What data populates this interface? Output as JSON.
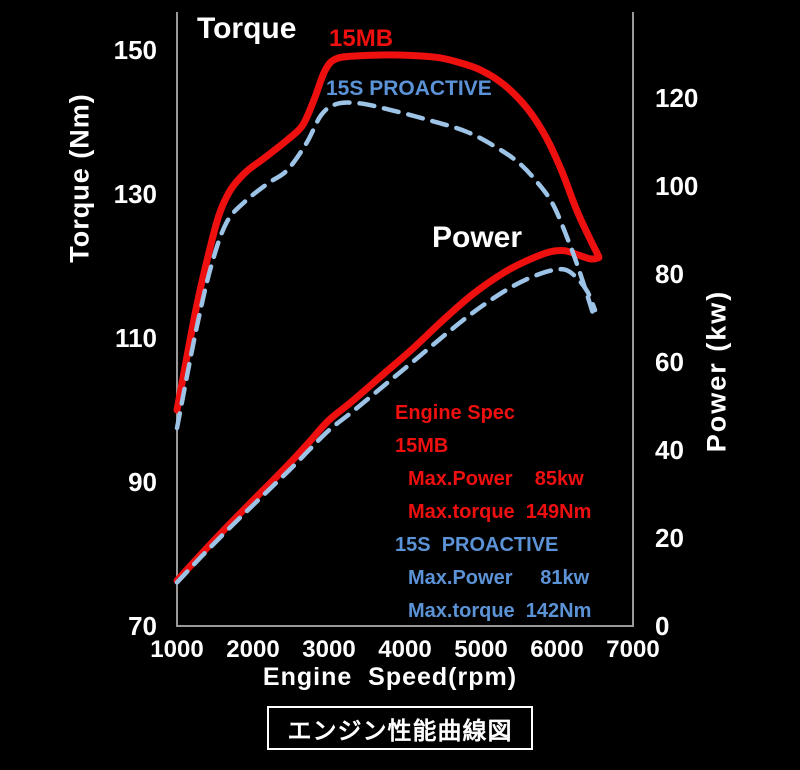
{
  "colors": {
    "background": "#000000",
    "red": "#ee0f0f",
    "blue_line": "#9dc3e6",
    "blue_text": "#5b93d6",
    "white": "#ffffff",
    "axis": "#9a9a9a"
  },
  "labels": {
    "torque_title": "Torque",
    "series_15mb": "15MB",
    "series_15s": "15S PROACTIVE",
    "power_title": "Power",
    "caption": "エンジン性能曲線図"
  },
  "spec": {
    "lines": [
      {
        "text": "Engine Spec",
        "tone": "red",
        "indent": false
      },
      {
        "text": "15MB",
        "tone": "red",
        "indent": false
      },
      {
        "text": "Max.Power    85kw",
        "tone": "red",
        "indent": true
      },
      {
        "text": "Max.torque  149Nm",
        "tone": "red",
        "indent": true
      },
      {
        "text": "15S  PROACTIVE",
        "tone": "blue",
        "indent": false
      },
      {
        "text": "Max.Power     81kw",
        "tone": "blue",
        "indent": true
      },
      {
        "text": "Max.torque  142Nm",
        "tone": "blue",
        "indent": true
      }
    ]
  },
  "chart_data": {
    "type": "line",
    "xlabel": "Engine  Speed(rpm)",
    "x_ticks": [
      1000,
      2000,
      3000,
      4000,
      5000,
      6000,
      7000
    ],
    "x_range": [
      1000,
      7000
    ],
    "y_left": {
      "label": "Torque (Nm)",
      "ticks": [
        150,
        130,
        110,
        90,
        70
      ],
      "range": [
        70,
        155
      ]
    },
    "y_right": {
      "label": "Power (kw)",
      "ticks": [
        120,
        100,
        80,
        60,
        40,
        20,
        0
      ],
      "range": [
        0,
        139
      ]
    },
    "grid": false,
    "series": [
      {
        "name": "15MB torque (Nm)",
        "axis": "torque",
        "style": "solid",
        "color_key": "red",
        "points": [
          [
            1000,
            100
          ],
          [
            1250,
            114
          ],
          [
            1400,
            121
          ],
          [
            1550,
            127
          ],
          [
            1700,
            130.5
          ],
          [
            1900,
            133
          ],
          [
            2150,
            135
          ],
          [
            2450,
            137.5
          ],
          [
            2650,
            139.5
          ],
          [
            2800,
            143
          ],
          [
            2950,
            147.2
          ],
          [
            3100,
            148.8
          ],
          [
            3400,
            149.2
          ],
          [
            3900,
            149.3
          ],
          [
            4400,
            149
          ],
          [
            4700,
            148.3
          ],
          [
            5000,
            147.2
          ],
          [
            5300,
            145.2
          ],
          [
            5600,
            142
          ],
          [
            5850,
            138
          ],
          [
            6050,
            133.5
          ],
          [
            6250,
            128
          ],
          [
            6400,
            124.5
          ],
          [
            6550,
            121.3
          ]
        ]
      },
      {
        "name": "15S PROACTIVE torque (Nm)",
        "axis": "torque",
        "style": "dashed",
        "color_key": "blue_line",
        "points": [
          [
            1000,
            97.5
          ],
          [
            1250,
            111
          ],
          [
            1450,
            120
          ],
          [
            1650,
            126
          ],
          [
            1900,
            129
          ],
          [
            2200,
            131.5
          ],
          [
            2450,
            133.3
          ],
          [
            2700,
            137
          ],
          [
            2900,
            141
          ],
          [
            3100,
            142.5
          ],
          [
            3400,
            142.6
          ],
          [
            3800,
            141.7
          ],
          [
            4300,
            140.3
          ],
          [
            4800,
            138.7
          ],
          [
            5200,
            136.5
          ],
          [
            5500,
            134.3
          ],
          [
            5750,
            131.5
          ],
          [
            5950,
            128.5
          ],
          [
            6150,
            123.5
          ],
          [
            6320,
            118.5
          ],
          [
            6500,
            112.5
          ]
        ]
      },
      {
        "name": "15MB power (kw)",
        "axis": "power",
        "style": "solid",
        "color_key": "red",
        "points": [
          [
            1000,
            10.3
          ],
          [
            1300,
            16
          ],
          [
            1600,
            21.5
          ],
          [
            1900,
            26.8
          ],
          [
            2200,
            32
          ],
          [
            2500,
            37.3
          ],
          [
            2750,
            42
          ],
          [
            3000,
            46.8
          ],
          [
            3300,
            51
          ],
          [
            3700,
            57
          ],
          [
            4100,
            63
          ],
          [
            4500,
            69.5
          ],
          [
            4900,
            75.5
          ],
          [
            5300,
            80.3
          ],
          [
            5600,
            83
          ],
          [
            5900,
            85
          ],
          [
            6100,
            85.3
          ],
          [
            6300,
            84.2
          ],
          [
            6450,
            83.4
          ],
          [
            6550,
            83.7
          ]
        ]
      },
      {
        "name": "15S PROACTIVE power (kw)",
        "axis": "power",
        "style": "dashed",
        "color_key": "blue_line",
        "points": [
          [
            1000,
            9.9
          ],
          [
            1300,
            15.4
          ],
          [
            1600,
            20.7
          ],
          [
            1900,
            25.8
          ],
          [
            2200,
            30.8
          ],
          [
            2500,
            35.8
          ],
          [
            2750,
            40.2
          ],
          [
            3000,
            44.5
          ],
          [
            3300,
            48.6
          ],
          [
            3700,
            54.3
          ],
          [
            4100,
            60
          ],
          [
            4500,
            65.8
          ],
          [
            4900,
            71.3
          ],
          [
            5300,
            76
          ],
          [
            5600,
            78.8
          ],
          [
            5900,
            80.7
          ],
          [
            6100,
            81
          ],
          [
            6250,
            79.3
          ],
          [
            6400,
            76
          ],
          [
            6500,
            71.8
          ]
        ]
      }
    ],
    "max_values": {
      "15MB": {
        "max_power": "85kw",
        "max_torque": "149Nm"
      },
      "15S PROACTIVE": {
        "max_power": "81kw",
        "max_torque": "142Nm"
      }
    }
  }
}
